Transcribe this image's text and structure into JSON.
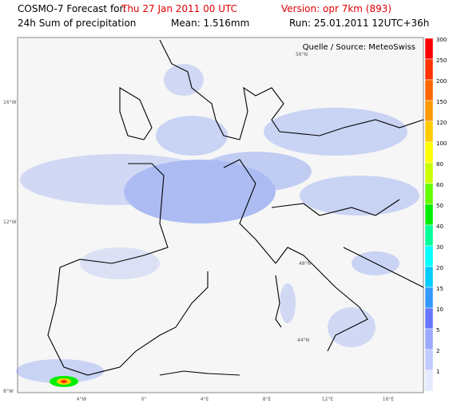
{
  "header": {
    "forecast_label": "COSMO-7 Forecast for:",
    "forecast_time": "Thu 27 Jan 2011 00 UTC",
    "version": "Version: opr 7km (893)",
    "product": "24h Sum of precipitation",
    "mean": "Mean: 1.516mm",
    "run": "Run: 25.01.2011 12UTC+36h"
  },
  "map": {
    "source": "Quelle / Source: MeteoSwiss",
    "left_labels": [
      "16°W",
      "12°W",
      "8°W"
    ],
    "bottom_labels": [
      "4°W",
      "0°",
      "4°E",
      "8°E",
      "12°E",
      "16°E"
    ],
    "inner_labels": [
      "56°N",
      "48°N",
      "44°N"
    ]
  },
  "colorbar": {
    "labels": [
      "300",
      "250",
      "200",
      "150",
      "120",
      "100",
      "80",
      "60",
      "50",
      "40",
      "30",
      "20",
      "15",
      "10",
      "5",
      "2",
      "1"
    ],
    "colors": [
      "#ff0000",
      "#ff3300",
      "#ff6600",
      "#ff9900",
      "#ffcc00",
      "#ffff00",
      "#ccff00",
      "#66ff00",
      "#00ee00",
      "#00ff99",
      "#00ffff",
      "#00ccff",
      "#3399ff",
      "#6677ff",
      "#99aaff",
      "#c0ccff",
      "#e4eaff"
    ]
  }
}
